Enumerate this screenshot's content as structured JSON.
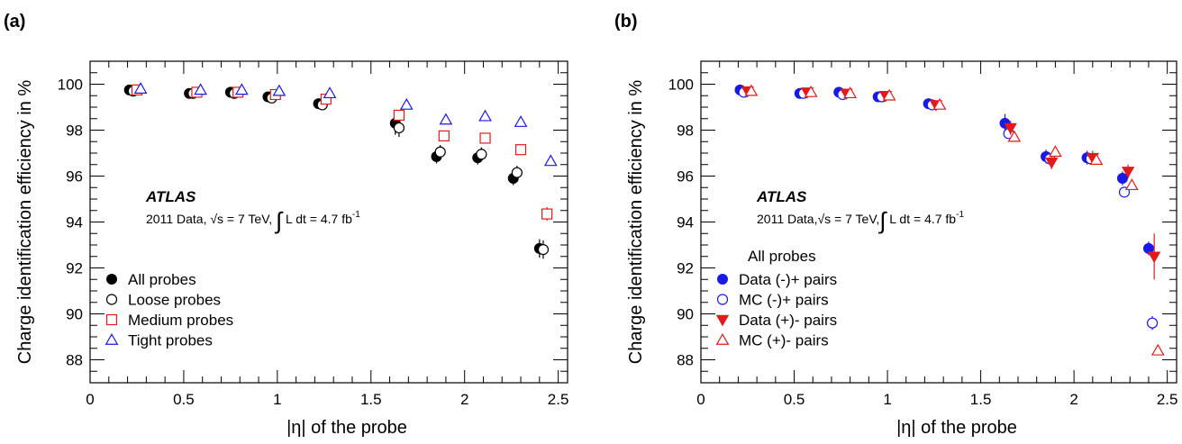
{
  "chart_data": [
    {
      "type": "scatter",
      "panel_label": "(a)",
      "xlabel": "|η| of the probe",
      "ylabel": "Charge identification efficiency in %",
      "xlim": [
        0,
        2.55
      ],
      "ylim": [
        87,
        101
      ],
      "xticks": [
        0,
        0.5,
        1,
        1.5,
        2,
        2.5
      ],
      "xtick_labels": [
        "0",
        "0.5",
        "1",
        "1.5",
        "2",
        "2.5"
      ],
      "yticks": [
        88,
        90,
        92,
        94,
        96,
        98,
        100
      ],
      "ytick_labels": [
        "88",
        "90",
        "92",
        "94",
        "96",
        "98",
        "100"
      ],
      "grid": false,
      "atlas_label": "ATLAS",
      "info_label": {
        "pre": "2011 Data, ",
        "sqrt": "√",
        "s": "s",
        "energy": " = 7 TeV, ",
        "integral": "∫",
        "lumi": " L dt = 4.7 fb",
        "sup": "-1"
      },
      "legend_position": "lower-left",
      "legend_title": "",
      "series": [
        {
          "name": "All probes",
          "marker": "filled-circle",
          "color": "#000000",
          "x": [
            0.21,
            0.53,
            0.75,
            0.95,
            1.22,
            1.63,
            1.85,
            2.07,
            2.26,
            2.4
          ],
          "y": [
            99.75,
            99.6,
            99.65,
            99.45,
            99.15,
            98.3,
            96.85,
            96.8,
            95.9,
            92.85
          ],
          "yerr": [
            0.05,
            0.05,
            0.05,
            0.05,
            0.1,
            0.5,
            0.3,
            0.3,
            0.3,
            0.4
          ]
        },
        {
          "name": "Loose probes",
          "marker": "open-circle",
          "color": "#000000",
          "x": [
            0.23,
            0.55,
            0.77,
            0.97,
            1.24,
            1.65,
            1.87,
            2.09,
            2.28,
            2.42
          ],
          "y": [
            99.7,
            99.6,
            99.6,
            99.4,
            99.1,
            98.1,
            97.05,
            96.95,
            96.15,
            92.8
          ],
          "yerr": [
            0.05,
            0.05,
            0.05,
            0.05,
            0.1,
            0.4,
            0.3,
            0.3,
            0.3,
            0.4
          ]
        },
        {
          "name": "Medium probes",
          "marker": "open-square",
          "color": "#e31a1c",
          "x": [
            0.25,
            0.57,
            0.79,
            0.99,
            1.26,
            1.65,
            1.89,
            2.11,
            2.3,
            2.44
          ],
          "y": [
            99.75,
            99.65,
            99.65,
            99.55,
            99.35,
            98.65,
            97.75,
            97.65,
            97.15,
            94.35
          ],
          "yerr": [
            0.05,
            0.05,
            0.05,
            0.05,
            0.1,
            0.2,
            0.1,
            0.1,
            0.1,
            0.3
          ]
        },
        {
          "name": "Tight probes",
          "marker": "open-triangle",
          "color": "#1a1ae6",
          "x": [
            0.27,
            0.59,
            0.81,
            1.01,
            1.28,
            1.69,
            1.9,
            2.11,
            2.3,
            2.46
          ],
          "y": [
            99.8,
            99.75,
            99.75,
            99.7,
            99.6,
            99.1,
            98.45,
            98.6,
            98.35,
            96.65
          ],
          "yerr": [
            0.03,
            0.03,
            0.03,
            0.03,
            0.05,
            0.1,
            0.1,
            0.1,
            0.1,
            0.1
          ]
        }
      ]
    },
    {
      "type": "scatter",
      "panel_label": "(b)",
      "xlabel": "|η| of the probe",
      "ylabel": "Charge identification efficiency in %",
      "xlim": [
        0,
        2.55
      ],
      "ylim": [
        87,
        101
      ],
      "xticks": [
        0,
        0.5,
        1,
        1.5,
        2,
        2.5
      ],
      "xtick_labels": [
        "0",
        "0.5",
        "1",
        "1.5",
        "2",
        "2.5"
      ],
      "yticks": [
        88,
        90,
        92,
        94,
        96,
        98,
        100
      ],
      "ytick_labels": [
        "88",
        "90",
        "92",
        "94",
        "96",
        "98",
        "100"
      ],
      "grid": false,
      "atlas_label": "ATLAS",
      "info_label": {
        "pre": "2011 Data,",
        "sqrt": "√",
        "s": "s",
        "energy": " = 7 TeV,",
        "integral": "∫",
        "lumi": " L dt = 4.7 fb",
        "sup": "-1"
      },
      "legend_position": "lower-left",
      "legend_title": "All probes",
      "series": [
        {
          "name": "Data (-)+ pairs",
          "marker": "filled-circle",
          "color": "#1a1ae6",
          "x": [
            0.21,
            0.53,
            0.74,
            0.95,
            1.22,
            1.63,
            1.85,
            2.07,
            2.26,
            2.4
          ],
          "y": [
            99.75,
            99.6,
            99.65,
            99.45,
            99.15,
            98.3,
            96.85,
            96.8,
            95.9,
            92.85
          ],
          "yerr": [
            0.05,
            0.05,
            0.05,
            0.05,
            0.1,
            0.4,
            0.3,
            0.3,
            0.3,
            0.3
          ]
        },
        {
          "name": "MC   (-)+ pairs",
          "marker": "open-circle",
          "color": "#1a1ae6",
          "x": [
            0.23,
            0.55,
            0.76,
            0.97,
            1.24,
            1.65,
            1.87,
            2.09,
            2.27,
            2.42
          ],
          "y": [
            99.65,
            99.6,
            99.55,
            99.45,
            99.1,
            97.85,
            96.75,
            96.75,
            95.3,
            89.6
          ],
          "yerr": [
            0.03,
            0.03,
            0.03,
            0.03,
            0.05,
            0.2,
            0.2,
            0.2,
            0.2,
            0.3
          ]
        },
        {
          "name": "Data (+)- pairs",
          "marker": "filled-triangle-down",
          "color": "#e31a1c",
          "x": [
            0.25,
            0.57,
            0.78,
            0.99,
            1.26,
            1.66,
            1.88,
            2.1,
            2.29,
            2.43
          ],
          "y": [
            99.7,
            99.65,
            99.6,
            99.5,
            99.1,
            98.1,
            96.6,
            96.8,
            96.2,
            92.5
          ],
          "yerr": [
            0.05,
            0.05,
            0.05,
            0.05,
            0.1,
            0.3,
            0.3,
            0.3,
            0.3,
            1.0
          ]
        },
        {
          "name": "MC   (+)- pairs",
          "marker": "open-triangle",
          "color": "#e31a1c",
          "x": [
            0.27,
            0.59,
            0.8,
            1.01,
            1.28,
            1.68,
            1.9,
            2.12,
            2.31,
            2.45
          ],
          "y": [
            99.7,
            99.65,
            99.6,
            99.5,
            99.1,
            97.7,
            97.05,
            96.7,
            95.6,
            88.4
          ],
          "yerr": [
            0.03,
            0.03,
            0.03,
            0.03,
            0.05,
            0.15,
            0.15,
            0.15,
            0.15,
            0.2
          ]
        }
      ]
    }
  ]
}
